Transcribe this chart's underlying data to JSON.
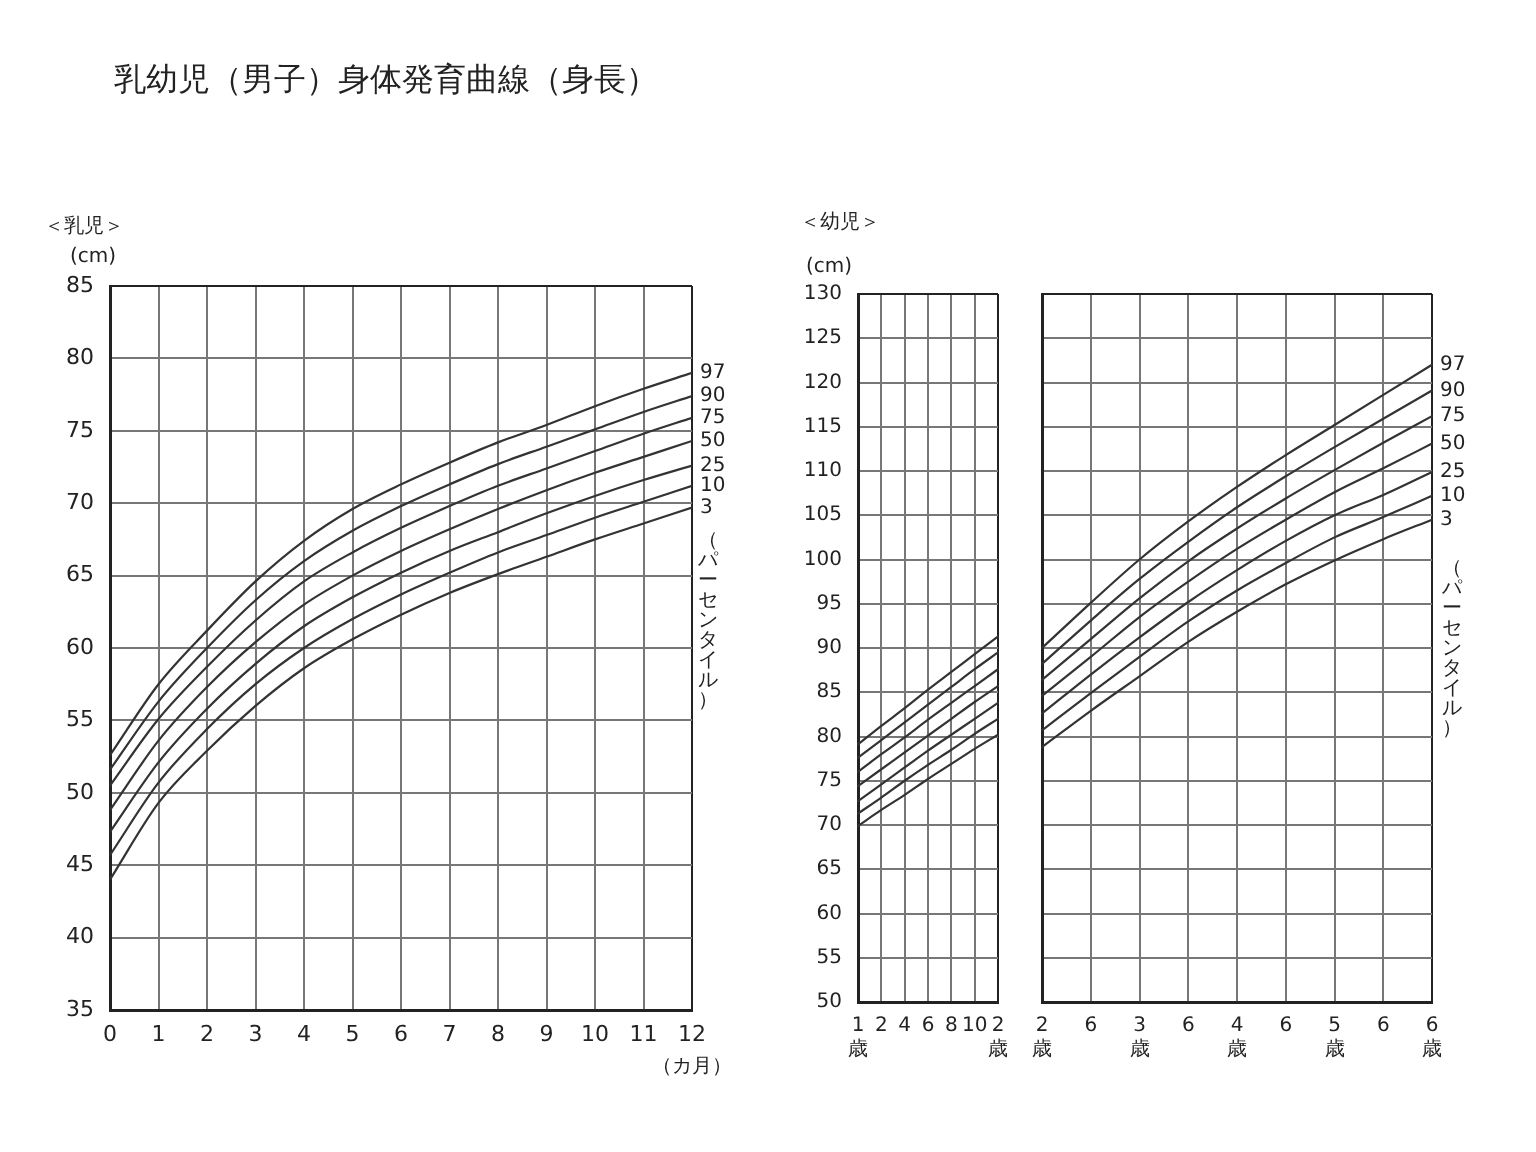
{
  "chart_data": [
    {
      "type": "line",
      "title": "乳幼児（男子）身体発育曲線（身長）",
      "subtitle": "＜乳児＞",
      "xlabel": "（カ月）",
      "ylabel": "(cm)",
      "annotations": [
        "（パーセンタイル）"
      ],
      "x": [
        0,
        1,
        2,
        3,
        4,
        5,
        6,
        7,
        8,
        9,
        10,
        11,
        12
      ],
      "series": [
        {
          "name": "97",
          "color": "#333333",
          "values": [
            52.6,
            57.5,
            61.2,
            64.6,
            67.4,
            69.6,
            71.3,
            72.8,
            74.2,
            75.4,
            76.7,
            77.9,
            79.0
          ]
        },
        {
          "name": "90",
          "color": "#333333",
          "values": [
            51.6,
            56.3,
            60.0,
            63.3,
            66.0,
            68.1,
            69.8,
            71.3,
            72.7,
            73.9,
            75.1,
            76.3,
            77.4
          ]
        },
        {
          "name": "75",
          "color": "#333333",
          "values": [
            50.5,
            55.1,
            58.7,
            61.9,
            64.6,
            66.6,
            68.3,
            69.8,
            71.2,
            72.4,
            73.6,
            74.8,
            75.9
          ]
        },
        {
          "name": "50",
          "color": "#333333",
          "values": [
            48.8,
            53.6,
            57.3,
            60.4,
            63.0,
            65.0,
            66.7,
            68.2,
            69.6,
            70.9,
            72.1,
            73.2,
            74.3
          ]
        },
        {
          "name": "25",
          "color": "#333333",
          "values": [
            47.3,
            52.1,
            55.8,
            58.9,
            61.5,
            63.5,
            65.2,
            66.7,
            68.0,
            69.3,
            70.5,
            71.6,
            72.6
          ]
        },
        {
          "name": "10",
          "color": "#333333",
          "values": [
            45.7,
            50.7,
            54.4,
            57.5,
            60.0,
            62.0,
            63.7,
            65.2,
            66.6,
            67.8,
            69.0,
            70.1,
            71.2
          ]
        },
        {
          "name": "3",
          "color": "#333333",
          "values": [
            44.0,
            49.3,
            52.9,
            56.0,
            58.6,
            60.6,
            62.3,
            63.8,
            65.1,
            66.3,
            67.5,
            68.6,
            69.7
          ]
        }
      ],
      "xlim": [
        0,
        12
      ],
      "xticks": [
        0,
        1,
        2,
        3,
        4,
        5,
        6,
        7,
        8,
        9,
        10,
        11,
        12
      ],
      "ylim": [
        35,
        85
      ],
      "yticks": [
        35,
        40,
        45,
        50,
        55,
        60,
        65,
        70,
        75,
        80,
        85
      ],
      "grid": true,
      "legend": false,
      "marker": "none",
      "line_style": "solid"
    },
    {
      "type": "line",
      "subtitle": "＜幼児＞",
      "ylabel": "(cm)",
      "categories": [
        "1歳",
        "2",
        "4",
        "6",
        "8",
        "10",
        "2歳"
      ],
      "series": [
        {
          "color": "#333333",
          "values": [
            79.1,
            81.2,
            83.2,
            85.3,
            87.3,
            89.3,
            91.3
          ]
        },
        {
          "color": "#333333",
          "values": [
            77.6,
            79.6,
            81.6,
            83.6,
            85.6,
            87.6,
            89.5
          ]
        },
        {
          "color": "#333333",
          "values": [
            76.0,
            78.0,
            79.9,
            81.9,
            83.8,
            85.7,
            87.6
          ]
        },
        {
          "color": "#333333",
          "values": [
            74.4,
            76.3,
            78.2,
            80.1,
            82.0,
            83.9,
            85.7
          ]
        },
        {
          "color": "#333333",
          "values": [
            72.7,
            74.6,
            76.5,
            78.4,
            80.2,
            82.0,
            83.8
          ]
        },
        {
          "color": "#333333",
          "values": [
            71.3,
            73.1,
            75.0,
            76.8,
            78.5,
            80.3,
            82.0
          ]
        },
        {
          "color": "#333333",
          "values": [
            69.9,
            71.7,
            73.4,
            75.2,
            76.9,
            78.6,
            80.2
          ]
        }
      ],
      "ylim": [
        50,
        130
      ],
      "yticks": [
        50,
        55,
        60,
        65,
        70,
        75,
        80,
        85,
        90,
        95,
        100,
        105,
        110,
        115,
        120,
        125,
        130
      ],
      "grid": true,
      "legend": false,
      "marker": "none",
      "line_style": "solid"
    },
    {
      "type": "line",
      "annotations": [
        "（パーセンタイル）"
      ],
      "categories": [
        "2歳",
        "6",
        "3歳",
        "6",
        "4歳",
        "6",
        "5歳",
        "6",
        "6歳"
      ],
      "series": [
        {
          "name": "97",
          "color": "#333333",
          "values": [
            90.0,
            95.1,
            100.0,
            104.3,
            108.2,
            111.8,
            115.2,
            118.6,
            122.0
          ]
        },
        {
          "name": "90",
          "color": "#333333",
          "values": [
            88.2,
            93.1,
            97.8,
            102.0,
            105.9,
            109.4,
            112.7,
            115.9,
            119.1
          ]
        },
        {
          "name": "75",
          "color": "#333333",
          "values": [
            86.4,
            91.0,
            95.6,
            99.8,
            103.5,
            106.9,
            110.1,
            113.2,
            116.2
          ]
        },
        {
          "name": "50",
          "color": "#333333",
          "values": [
            84.6,
            89.0,
            93.5,
            97.5,
            101.2,
            104.5,
            107.6,
            110.3,
            113.1
          ]
        },
        {
          "name": "25",
          "color": "#333333",
          "values": [
            82.6,
            87.0,
            91.2,
            95.2,
            98.8,
            102.1,
            105.0,
            107.3,
            109.9
          ]
        },
        {
          "name": "10",
          "color": "#333333",
          "values": [
            80.7,
            84.9,
            89.0,
            93.0,
            96.5,
            99.6,
            102.5,
            104.8,
            107.2
          ]
        },
        {
          "name": "3",
          "color": "#333333",
          "values": [
            78.8,
            82.9,
            86.8,
            90.7,
            94.1,
            97.2,
            99.9,
            102.3,
            104.5
          ]
        }
      ],
      "ylim": [
        50,
        130
      ],
      "yticks": [
        50,
        55,
        60,
        65,
        70,
        75,
        80,
        85,
        90,
        95,
        100,
        105,
        110,
        115,
        120,
        125,
        130
      ],
      "tick_labels": "x",
      "grid": true,
      "legend": false,
      "marker": "none",
      "line_style": "solid"
    }
  ]
}
